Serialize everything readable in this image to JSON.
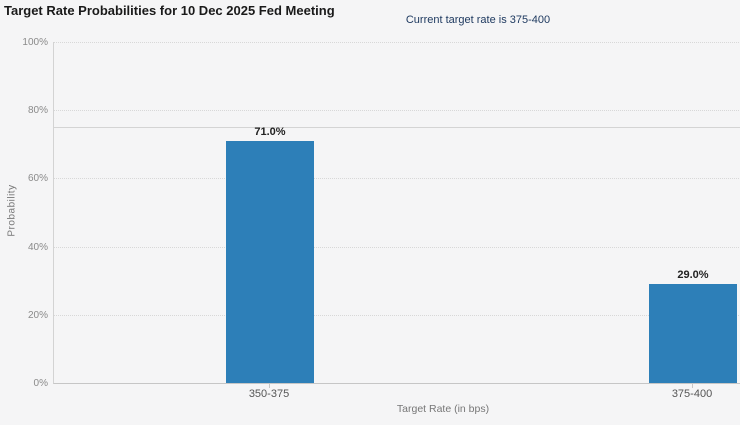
{
  "chart_data": {
    "type": "bar",
    "title": "Target Rate Probabilities for 10 Dec 2025 Fed Meeting",
    "subtitle": "Current target rate is 375-400",
    "categories": [
      "350-375",
      "375-400"
    ],
    "values": [
      71.0,
      29.0
    ],
    "value_labels": [
      "71.0%",
      "29.0%"
    ],
    "xlabel": "Target Rate (in bps)",
    "ylabel": "Probability",
    "ylim": [
      0,
      100
    ],
    "yticks": [
      0,
      20,
      40,
      60,
      80,
      100
    ],
    "ytick_labels": [
      "0%",
      "20%",
      "40%",
      "60%",
      "80%",
      "100%"
    ],
    "grid": "dotted-horizontal",
    "legend_position": "none",
    "reference_line_y": 75,
    "bar_color": "#2d7fb8"
  },
  "colors": {
    "background": "#f5f5f6",
    "bar": "#2d7fb8",
    "subtitle_text": "#1f3a60",
    "axis_line": "#c6c6c6",
    "gridline": "#d8d8d8"
  }
}
